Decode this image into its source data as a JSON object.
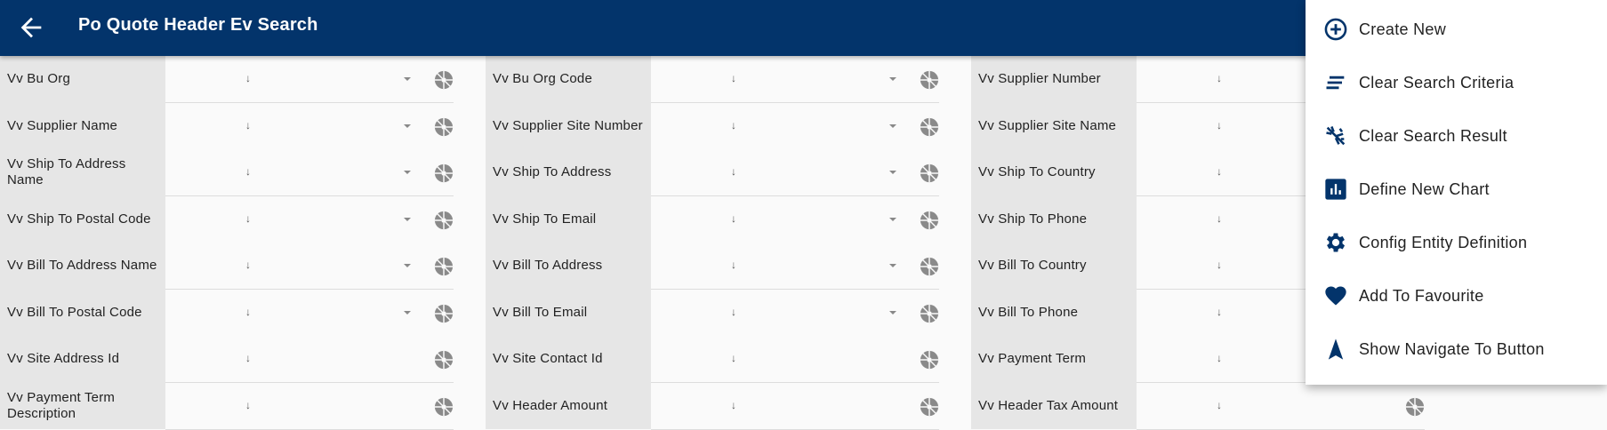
{
  "header": {
    "title": "Po Quote Header Ev  Search",
    "back_icon": "arrow-left-icon"
  },
  "colors": {
    "primary": "#03346b",
    "label_bg": "#e6e6e6",
    "icon_gray": "#8a8a8a"
  },
  "field_arrow": "↓",
  "columns": [
    [
      {
        "label": "Vv Bu Org",
        "dropdown": true
      },
      {
        "label": "Vv Supplier Name",
        "dropdown": true
      },
      {
        "label": "Vv Ship To Address Name",
        "dropdown": true
      },
      {
        "label": "Vv Ship To Postal Code",
        "dropdown": true
      },
      {
        "label": "Vv Bill To Address Name",
        "dropdown": true
      },
      {
        "label": "Vv Bill To Postal Code",
        "dropdown": true
      },
      {
        "label": "Vv Site Address Id",
        "dropdown": false
      },
      {
        "label": "Vv Payment Term Description",
        "dropdown": false
      }
    ],
    [
      {
        "label": "Vv Bu Org Code",
        "dropdown": true
      },
      {
        "label": "Vv Supplier Site Number",
        "dropdown": true
      },
      {
        "label": "Vv Ship To Address",
        "dropdown": true
      },
      {
        "label": "Vv Ship To Email",
        "dropdown": true
      },
      {
        "label": "Vv Bill To Address",
        "dropdown": true
      },
      {
        "label": "Vv Bill To Email",
        "dropdown": true
      },
      {
        "label": "Vv Site Contact Id",
        "dropdown": false
      },
      {
        "label": "Vv Header Amount",
        "dropdown": false
      }
    ],
    [
      {
        "label": "Vv Supplier Number",
        "dropdown": false
      },
      {
        "label": "Vv Supplier Site Name",
        "dropdown": false
      },
      {
        "label": "Vv Ship To Country",
        "dropdown": false
      },
      {
        "label": "Vv Ship To Phone",
        "dropdown": false
      },
      {
        "label": "Vv Bill To Country",
        "dropdown": false
      },
      {
        "label": "Vv Bill To Phone",
        "dropdown": false
      },
      {
        "label": "Vv Payment Term",
        "dropdown": false
      },
      {
        "label": "Vv Header Tax Amount",
        "dropdown": false
      }
    ]
  ],
  "menu": {
    "items": [
      {
        "label": "Create New",
        "icon": "plus-circle-icon"
      },
      {
        "label": "Clear Search Criteria",
        "icon": "clear-lines-icon"
      },
      {
        "label": "Clear Search Result",
        "icon": "clear-all-icon"
      },
      {
        "label": "Define New Chart",
        "icon": "bar-chart-icon"
      },
      {
        "label": "Config Entity Definition",
        "icon": "gear-icon"
      },
      {
        "label": "Add To Favourite",
        "icon": "heart-icon"
      },
      {
        "label": "Show Navigate To Button",
        "icon": "navigation-arrow-icon"
      }
    ]
  }
}
